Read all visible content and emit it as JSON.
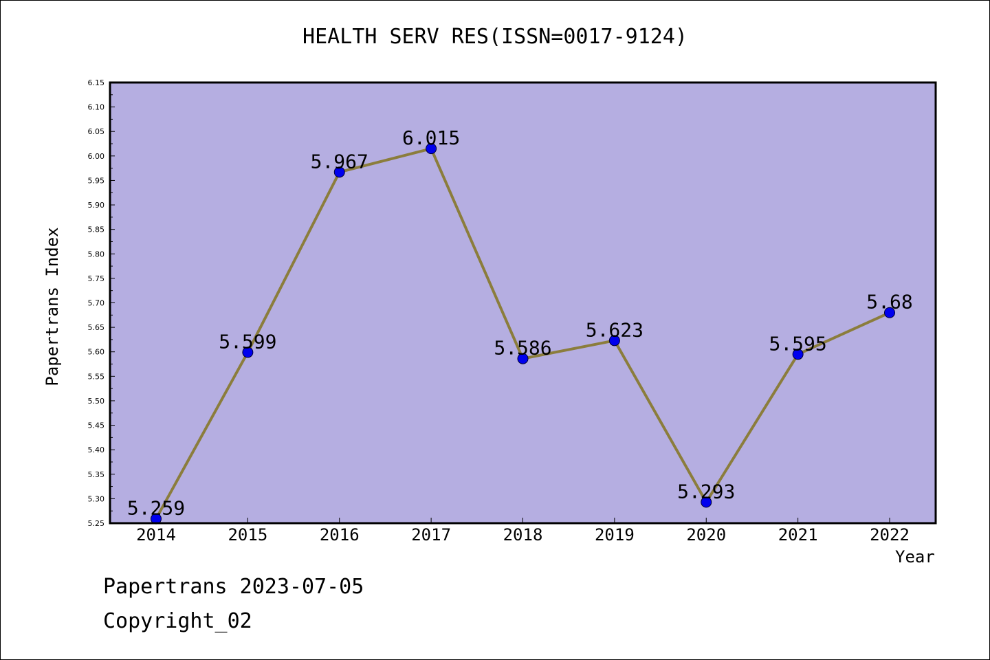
{
  "chart_data": {
    "type": "line",
    "title": "HEALTH SERV RES(ISSN=0017-9124)",
    "xlabel": "Year",
    "ylabel": "Papertrans Index",
    "categories": [
      "2014",
      "2015",
      "2016",
      "2017",
      "2018",
      "2019",
      "2020",
      "2021",
      "2022"
    ],
    "values": [
      5.259,
      5.599,
      5.967,
      6.015,
      5.586,
      5.623,
      5.293,
      5.595,
      5.68
    ],
    "data_labels": [
      "5.259",
      "5.599",
      "5.967",
      "6.015",
      "5.586",
      "5.623",
      "5.293",
      "5.595",
      "5.68"
    ],
    "ylim": [
      5.25,
      6.15
    ],
    "yticks": [
      "5.25",
      "5.30",
      "5.35",
      "5.40",
      "5.45",
      "5.50",
      "5.55",
      "5.60",
      "5.65",
      "5.70",
      "5.75",
      "5.80",
      "5.85",
      "5.90",
      "5.95",
      "6.00",
      "6.05",
      "6.10",
      "6.15"
    ],
    "colors": {
      "plot_background": "#b5aee1",
      "line": "#8b7d3c",
      "marker": "#0000ee"
    },
    "grid": false
  },
  "footer": {
    "line1": "Papertrans 2023-07-05",
    "line2": "Copyright_02"
  }
}
